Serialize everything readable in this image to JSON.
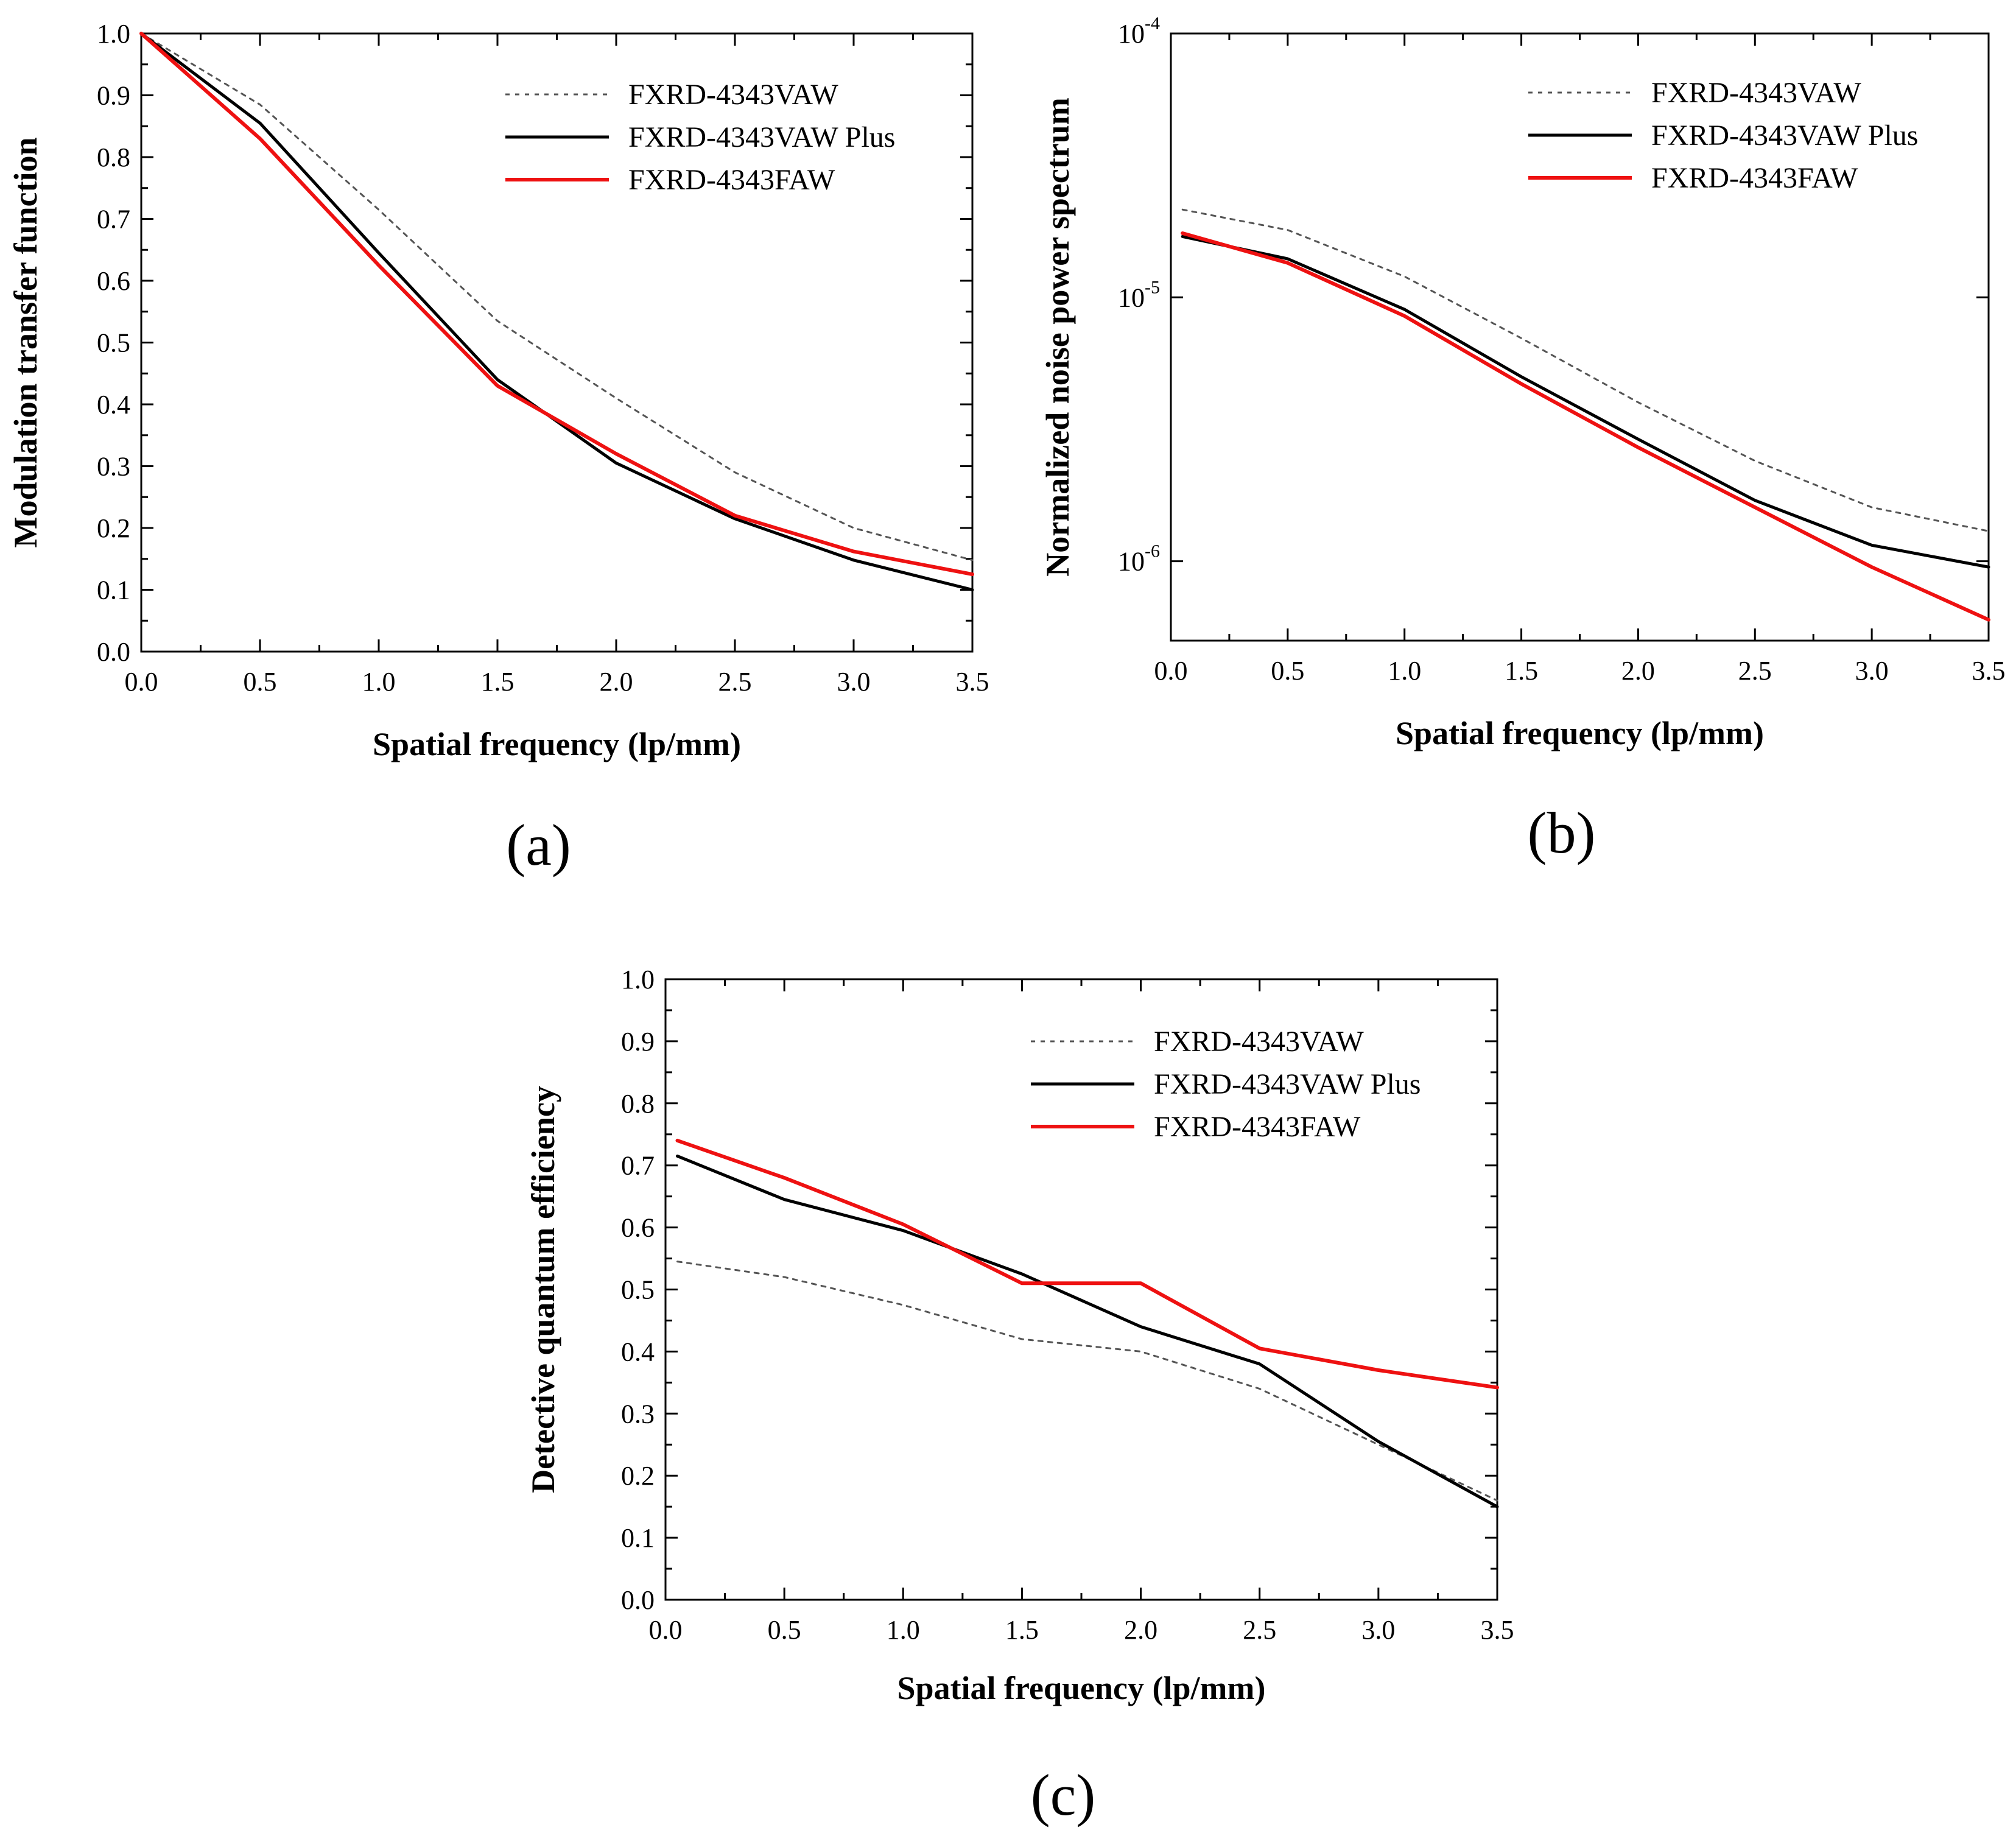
{
  "chart_data": [
    {
      "panel_label": "(a)",
      "type": "line",
      "yscale": "linear",
      "xlabel": "Spatial frequency (lp/mm)",
      "ylabel": "Modulation transfer function",
      "xlim": [
        0,
        3.5
      ],
      "ylim": [
        0,
        1.0
      ],
      "xticks": [
        "0.0",
        "0.5",
        "1.0",
        "1.5",
        "2.0",
        "2.5",
        "3.0",
        "3.5"
      ],
      "yticks": [
        "0.0",
        "0.1",
        "0.2",
        "0.3",
        "0.4",
        "0.5",
        "0.6",
        "0.7",
        "0.8",
        "0.9",
        "1.0"
      ],
      "legend_position": "top-right",
      "series": [
        {
          "name": "FXRD-4343VAW",
          "color": "#555555",
          "style": "dotted",
          "x": [
            0,
            0.5,
            1.0,
            1.5,
            2.0,
            2.5,
            3.0,
            3.5
          ],
          "y": [
            1.0,
            0.885,
            0.715,
            0.535,
            0.41,
            0.29,
            0.2,
            0.148
          ]
        },
        {
          "name": "FXRD-4343VAW Plus",
          "color": "#000000",
          "style": "solid",
          "x": [
            0,
            0.5,
            1.0,
            1.5,
            2.0,
            2.5,
            3.0,
            3.5
          ],
          "y": [
            1.0,
            0.855,
            0.645,
            0.44,
            0.305,
            0.215,
            0.148,
            0.1
          ]
        },
        {
          "name": "FXRD-4343FAW",
          "color": "#ee1111",
          "style": "solid",
          "x": [
            0,
            0.5,
            1.0,
            1.5,
            2.0,
            2.5,
            3.0,
            3.5
          ],
          "y": [
            1.0,
            0.83,
            0.625,
            0.43,
            0.32,
            0.22,
            0.162,
            0.125
          ]
        }
      ]
    },
    {
      "panel_label": "(b)",
      "type": "line",
      "yscale": "log",
      "xlabel": "Spatial frequency (lp/mm)",
      "ylabel": "Normalized noise power spectrum",
      "xlim": [
        0,
        3.5
      ],
      "ylim": [
        5e-07,
        0.0001
      ],
      "xticks": [
        "0.0",
        "0.5",
        "1.0",
        "1.5",
        "2.0",
        "2.5",
        "3.0",
        "3.5"
      ],
      "yticks": [
        {
          "value": 0.0001,
          "base": "10",
          "exp": "-4"
        },
        {
          "value": 1e-05,
          "base": "10",
          "exp": "-5"
        },
        {
          "value": 1e-06,
          "base": "10",
          "exp": "-6"
        }
      ],
      "legend_position": "top-right",
      "series": [
        {
          "name": "FXRD-4343VAW",
          "color": "#555555",
          "style": "dotted",
          "x": [
            0.05,
            0.5,
            1.0,
            1.5,
            2.0,
            2.5,
            3.0,
            3.5
          ],
          "y": [
            2.15e-05,
            1.8e-05,
            1.2e-05,
            7e-06,
            4e-06,
            2.4e-06,
            1.6e-06,
            1.3e-06
          ]
        },
        {
          "name": "FXRD-4343VAW Plus",
          "color": "#000000",
          "style": "solid",
          "x": [
            0.05,
            0.5,
            1.0,
            1.5,
            2.0,
            2.5,
            3.0,
            3.5
          ],
          "y": [
            1.7e-05,
            1.4e-05,
            9e-06,
            5e-06,
            2.9e-06,
            1.7e-06,
            1.15e-06,
            9.5e-07
          ]
        },
        {
          "name": "FXRD-4343FAW",
          "color": "#ee1111",
          "style": "solid",
          "x": [
            0.05,
            0.5,
            1.0,
            1.5,
            2.0,
            2.5,
            3.0,
            3.5
          ],
          "y": [
            1.75e-05,
            1.35e-05,
            8.5e-06,
            4.7e-06,
            2.7e-06,
            1.6e-06,
            9.5e-07,
            6e-07
          ]
        }
      ]
    },
    {
      "panel_label": "(c)",
      "type": "line",
      "yscale": "linear",
      "xlabel": "Spatial frequency (lp/mm)",
      "ylabel": "Detective quantum efficiency",
      "xlim": [
        0,
        3.5
      ],
      "ylim": [
        0,
        1.0
      ],
      "xticks": [
        "0.0",
        "0.5",
        "1.0",
        "1.5",
        "2.0",
        "2.5",
        "3.0",
        "3.5"
      ],
      "yticks": [
        "0.0",
        "0.1",
        "0.2",
        "0.3",
        "0.4",
        "0.5",
        "0.6",
        "0.7",
        "0.8",
        "0.9",
        "1.0"
      ],
      "legend_position": "top-right",
      "series": [
        {
          "name": "FXRD-4343VAW",
          "color": "#555555",
          "style": "dotted",
          "x": [
            0.05,
            0.5,
            1.0,
            1.5,
            2.0,
            2.5,
            3.0,
            3.5
          ],
          "y": [
            0.545,
            0.52,
            0.475,
            0.42,
            0.4,
            0.34,
            0.25,
            0.16
          ]
        },
        {
          "name": "FXRD-4343VAW Plus",
          "color": "#000000",
          "style": "solid",
          "x": [
            0.05,
            0.5,
            1.0,
            1.5,
            2.0,
            2.5,
            3.0,
            3.5
          ],
          "y": [
            0.715,
            0.645,
            0.595,
            0.525,
            0.44,
            0.38,
            0.255,
            0.15
          ]
        },
        {
          "name": "FXRD-4343FAW",
          "color": "#ee1111",
          "style": "solid",
          "x": [
            0.05,
            0.5,
            1.0,
            1.5,
            2.0,
            2.5,
            3.0,
            3.5
          ],
          "y": [
            0.74,
            0.68,
            0.605,
            0.51,
            0.51,
            0.405,
            0.37,
            0.342
          ]
        }
      ]
    }
  ]
}
